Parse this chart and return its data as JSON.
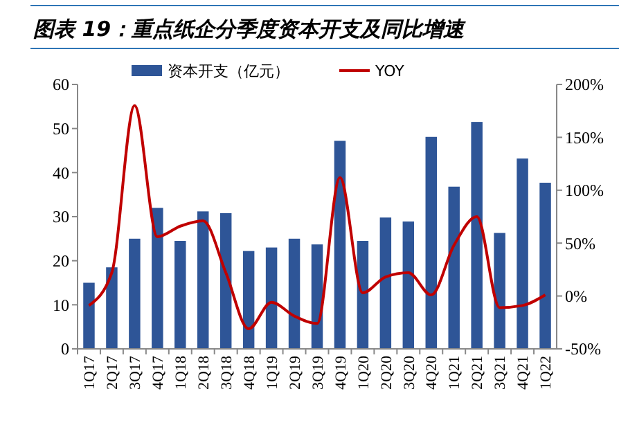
{
  "chart_data": {
    "type": "bar",
    "title": "图表 19：重点纸企分季度资本开支及同比增速",
    "categories": [
      "1Q17",
      "2Q17",
      "3Q17",
      "4Q17",
      "1Q18",
      "2Q18",
      "3Q18",
      "4Q18",
      "1Q19",
      "2Q19",
      "3Q19",
      "4Q19",
      "1Q20",
      "2Q20",
      "3Q20",
      "4Q20",
      "1Q21",
      "2Q21",
      "3Q21",
      "4Q21",
      "1Q22"
    ],
    "series": [
      {
        "name": "资本开支（亿元）",
        "color": "#2e5597",
        "values": [
          15,
          18.5,
          25,
          32,
          24.5,
          31.2,
          30.8,
          22.2,
          23,
          25,
          23.7,
          47.2,
          24.5,
          29.8,
          28.9,
          48.1,
          36.8,
          51.5,
          26.3,
          43.2,
          37.7
        ]
      },
      {
        "name": "YOY",
        "type": "line",
        "axis": "y2",
        "color": "#c00000",
        "values": [
          -9,
          22,
          180,
          56,
          66,
          71,
          22,
          -31,
          -6,
          -19,
          -26,
          112,
          3,
          18,
          22,
          1,
          48,
          75,
          -11,
          -9,
          1
        ]
      }
    ],
    "ylim": [
      0,
      60
    ],
    "yticks": [
      0,
      10,
      20,
      30,
      40,
      50,
      60
    ],
    "y2lim": [
      -50,
      200
    ],
    "y2ticks": [
      {
        "value": -50,
        "label": "-50%"
      },
      {
        "value": 0,
        "label": "0%"
      },
      {
        "value": 50,
        "label": "50%"
      },
      {
        "value": 100,
        "label": "100%"
      },
      {
        "value": 150,
        "label": "150%"
      },
      {
        "value": 200,
        "label": "200%"
      }
    ],
    "legend": "top",
    "grid": false
  }
}
